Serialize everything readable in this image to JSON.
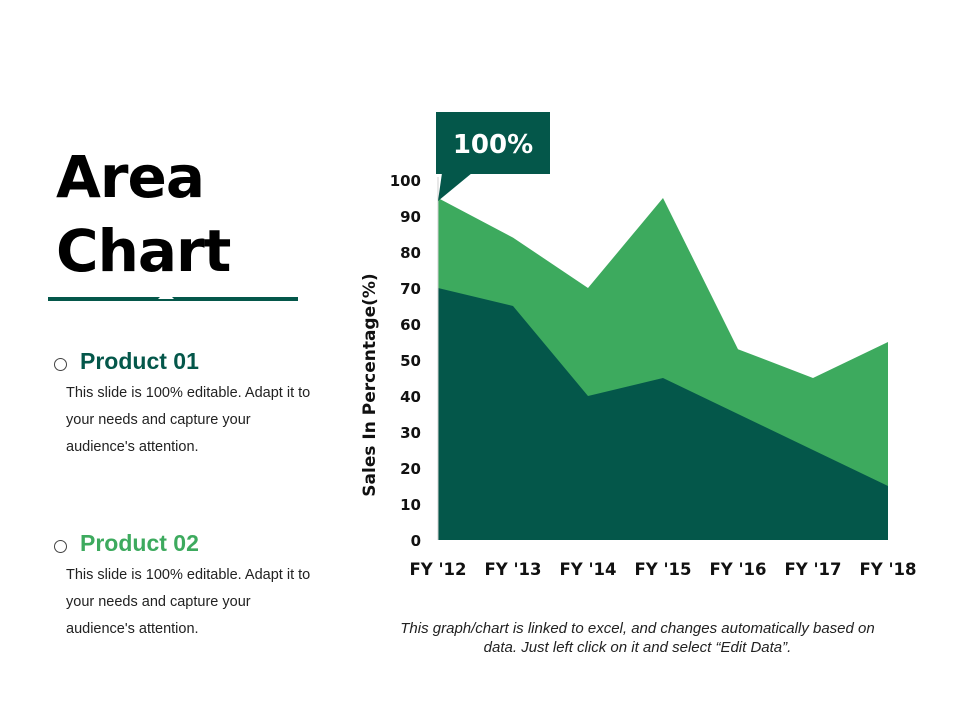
{
  "title_line1": "Area",
  "title_line2": "Chart",
  "products": [
    {
      "name": "Product 01",
      "description": "This slide is 100% editable. Adapt it to your needs and capture your audience's attention.",
      "color": "#04574a"
    },
    {
      "name": "Product 02",
      "description": "This slide is 100% editable. Adapt it to your needs and capture your audience's attention.",
      "color": "#3daa5e"
    }
  ],
  "callout": "100%",
  "note": "This graph/chart is linked to excel, and changes automatically based on data. Just left click on it and select “Edit Data”.",
  "colors": {
    "dark": "#04574a",
    "light": "#3daa5e",
    "rule": "#04574a"
  },
  "chart_data": {
    "type": "area",
    "stacked": false,
    "categories": [
      "FY '12",
      "FY '13",
      "FY '14",
      "FY '15",
      "FY '16",
      "FY '17",
      "FY '18"
    ],
    "series": [
      {
        "name": "Product 02",
        "values": [
          95,
          84,
          70,
          95,
          53,
          45,
          55
        ],
        "color": "#3daa5e"
      },
      {
        "name": "Product 01",
        "values": [
          70,
          65,
          40,
          45,
          35,
          25,
          15
        ],
        "color": "#04574a"
      }
    ],
    "yticks": [
      0,
      10,
      20,
      30,
      40,
      50,
      60,
      70,
      80,
      90,
      100
    ],
    "ylim": [
      0,
      100
    ],
    "ylabel": "Sales In Percentage(%)",
    "xlabel": "",
    "grid": false,
    "legend": "left"
  }
}
